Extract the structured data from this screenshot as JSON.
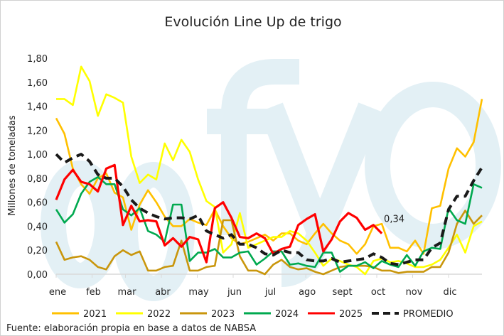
{
  "chart_data": {
    "type": "line",
    "title": "Evolución Line Up de trigo",
    "ylabel": "Millones de toneladas",
    "xlabel": "",
    "ylim": [
      0,
      1.8
    ],
    "yticks": [
      "0,00",
      "0,20",
      "0,40",
      "0,60",
      "0,80",
      "1,00",
      "1,20",
      "1,40",
      "1,60",
      "1,80"
    ],
    "ytick_values": [
      0,
      0.2,
      0.4,
      0.6,
      0.8,
      1.0,
      1.2,
      1.4,
      1.6,
      1.8
    ],
    "x_unit": "week",
    "xlim": [
      0,
      51
    ],
    "months": [
      {
        "label": "ene",
        "week": 0
      },
      {
        "label": "feb",
        "week": 4.3
      },
      {
        "label": "mar",
        "week": 8.3
      },
      {
        "label": "abr",
        "week": 12.6
      },
      {
        "label": "may",
        "week": 16.9
      },
      {
        "label": "jun",
        "week": 21.2
      },
      {
        "label": "jul",
        "week": 25.5
      },
      {
        "label": "ago",
        "week": 29.9
      },
      {
        "label": "sept",
        "week": 34.1
      },
      {
        "label": "oct",
        "week": 38.4
      },
      {
        "label": "nov",
        "week": 42.7
      },
      {
        "label": "dic",
        "week": 47
      }
    ],
    "legend_position": "bottom",
    "series": [
      {
        "name": "2021",
        "color": "#FFC000",
        "dashed": false,
        "values": [
          1.3,
          1.17,
          0.88,
          0.75,
          0.67,
          0.8,
          0.84,
          0.68,
          0.64,
          0.37,
          0.58,
          0.7,
          0.6,
          0.48,
          0.4,
          0.4,
          0.46,
          0.43,
          0.41,
          0.54,
          0.4,
          0.3,
          0.25,
          0.27,
          0.3,
          0.33,
          0.28,
          0.34,
          0.34,
          0.28,
          0.25,
          0.34,
          0.42,
          0.34,
          0.28,
          0.25,
          0.17,
          0.25,
          0.4,
          0.42,
          0.22,
          0.22,
          0.19,
          0.28,
          0.17,
          0.55,
          0.57,
          0.88,
          1.05,
          0.98,
          1.1,
          1.46
        ]
      },
      {
        "name": "2022",
        "color": "#FFFF00",
        "dashed": false,
        "values": [
          1.46,
          1.46,
          1.41,
          1.73,
          1.61,
          1.32,
          1.5,
          1.47,
          1.43,
          0.98,
          0.76,
          0.83,
          0.79,
          1.09,
          0.95,
          1.12,
          1.02,
          0.79,
          0.61,
          0.56,
          0.18,
          0.25,
          0.51,
          0.22,
          0.25,
          0.28,
          0.31,
          0.31,
          0.36,
          0.34,
          0.28,
          0.18,
          0.07,
          0.13,
          0.11,
          0.08,
          0.06,
          0.0,
          0.11,
          0.13,
          0.1,
          0.11,
          0.09,
          0.06,
          0.06,
          0.08,
          0.12,
          0.22,
          0.33,
          0.18,
          0.4,
          0.44
        ]
      },
      {
        "name": "2023",
        "color": "#C9960C",
        "dashed": false,
        "values": [
          0.27,
          0.12,
          0.14,
          0.15,
          0.12,
          0.06,
          0.04,
          0.15,
          0.2,
          0.16,
          0.19,
          0.03,
          0.03,
          0.06,
          0.07,
          0.28,
          0.03,
          0.03,
          0.06,
          0.07,
          0.45,
          0.45,
          0.15,
          0.03,
          0.03,
          0.0,
          0.08,
          0.12,
          0.06,
          0.04,
          0.05,
          0.02,
          0.0,
          0.03,
          0.06,
          0.07,
          0.07,
          0.07,
          0.06,
          0.03,
          0.03,
          0.01,
          0.02,
          0.02,
          0.02,
          0.06,
          0.06,
          0.18,
          0.42,
          0.53,
          0.42,
          0.49
        ]
      },
      {
        "name": "2024",
        "color": "#00A94F",
        "dashed": false,
        "values": [
          0.54,
          0.43,
          0.5,
          0.67,
          0.77,
          0.81,
          0.75,
          0.75,
          0.54,
          0.49,
          0.55,
          0.36,
          0.33,
          0.27,
          0.58,
          0.58,
          0.11,
          0.18,
          0.18,
          0.21,
          0.14,
          0.14,
          0.18,
          0.19,
          0.08,
          0.13,
          0.19,
          0.19,
          0.08,
          0.09,
          0.07,
          0.06,
          0.18,
          0.18,
          0.02,
          0.07,
          0.07,
          0.1,
          0.05,
          0.11,
          0.08,
          0.06,
          0.16,
          0.07,
          0.19,
          0.22,
          0.21,
          0.55,
          0.45,
          0.42,
          0.75,
          0.72
        ]
      },
      {
        "name": "2025",
        "color": "#FF0000",
        "dashed": false,
        "values": [
          0.62,
          0.79,
          0.87,
          0.77,
          0.75,
          0.69,
          0.88,
          0.91,
          0.41,
          0.57,
          0.44,
          0.45,
          0.44,
          0.24,
          0.3,
          0.23,
          0.31,
          0.29,
          0.1,
          0.55,
          0.6,
          0.47,
          0.31,
          0.3,
          0.34,
          0.3,
          0.17,
          0.21,
          0.23,
          0.41,
          0.46,
          0.5,
          0.19,
          0.29,
          0.44,
          0.51,
          0.47,
          0.37,
          0.41,
          0.34
        ]
      },
      {
        "name": "PROMEDIO",
        "color": "#1A1A1A",
        "dashed": true,
        "values": [
          1.0,
          0.93,
          0.97,
          1.0,
          0.94,
          0.83,
          0.8,
          0.8,
          0.73,
          0.62,
          0.55,
          0.51,
          0.48,
          0.46,
          0.47,
          0.47,
          0.46,
          0.49,
          0.36,
          0.33,
          0.3,
          0.33,
          0.25,
          0.25,
          0.22,
          0.17,
          0.16,
          0.2,
          0.18,
          0.18,
          0.12,
          0.11,
          0.11,
          0.13,
          0.1,
          0.11,
          0.12,
          0.13,
          0.17,
          0.14,
          0.09,
          0.08,
          0.1,
          0.12,
          0.12,
          0.22,
          0.26,
          0.54,
          0.65,
          0.65,
          0.78,
          0.89
        ]
      }
    ],
    "annotations": [
      {
        "text": "0,34",
        "series": "2025",
        "week": 39
      }
    ],
    "watermark": "fyo",
    "source": "Fuente: elaboración propia en base a datos de NABSA"
  }
}
